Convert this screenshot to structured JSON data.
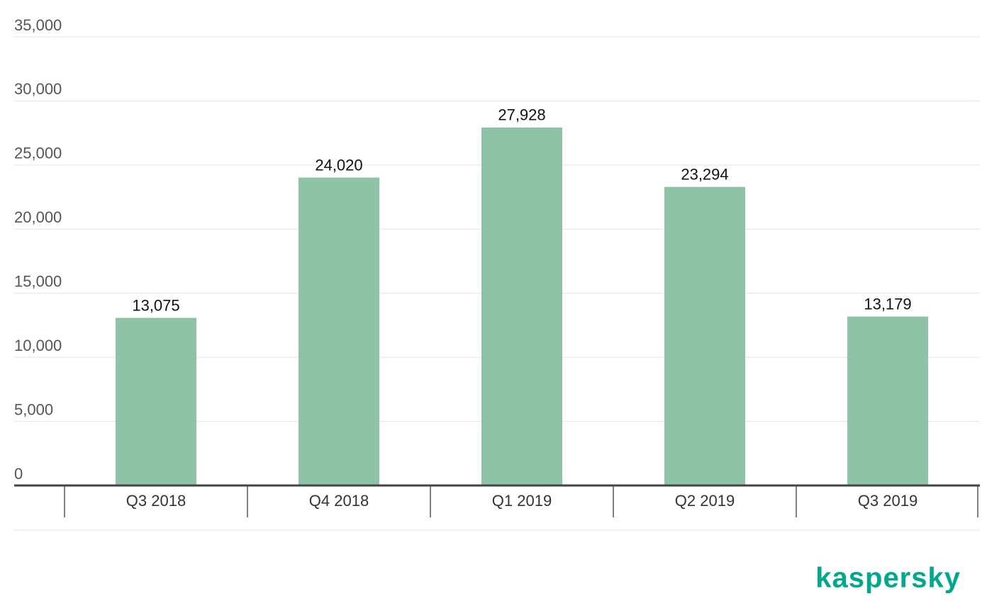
{
  "chart_data": {
    "type": "bar",
    "categories": [
      "Q3 2018",
      "Q4 2018",
      "Q1 2019",
      "Q2 2019",
      "Q3 2019"
    ],
    "values": [
      13075,
      24020,
      27928,
      23294,
      13179
    ],
    "value_labels": [
      "13,075",
      "24,020",
      "27,928",
      "23,294",
      "13,179"
    ],
    "color": "#8fc3a8",
    "ylim": [
      0,
      35000
    ],
    "yticks": [
      0,
      {
        "value": 5000,
        "label": "5,000"
      },
      {
        "value": 10000,
        "label": "10,000"
      },
      {
        "value": 15000,
        "label": "15,000"
      },
      {
        "value": 20000,
        "label": "20,000"
      },
      {
        "value": 25000,
        "label": "25,000"
      },
      {
        "value": 30000,
        "label": "30,000"
      },
      {
        "value": 35000,
        "label": "35,000"
      }
    ],
    "grid": true
  },
  "brand": "kaspersky"
}
